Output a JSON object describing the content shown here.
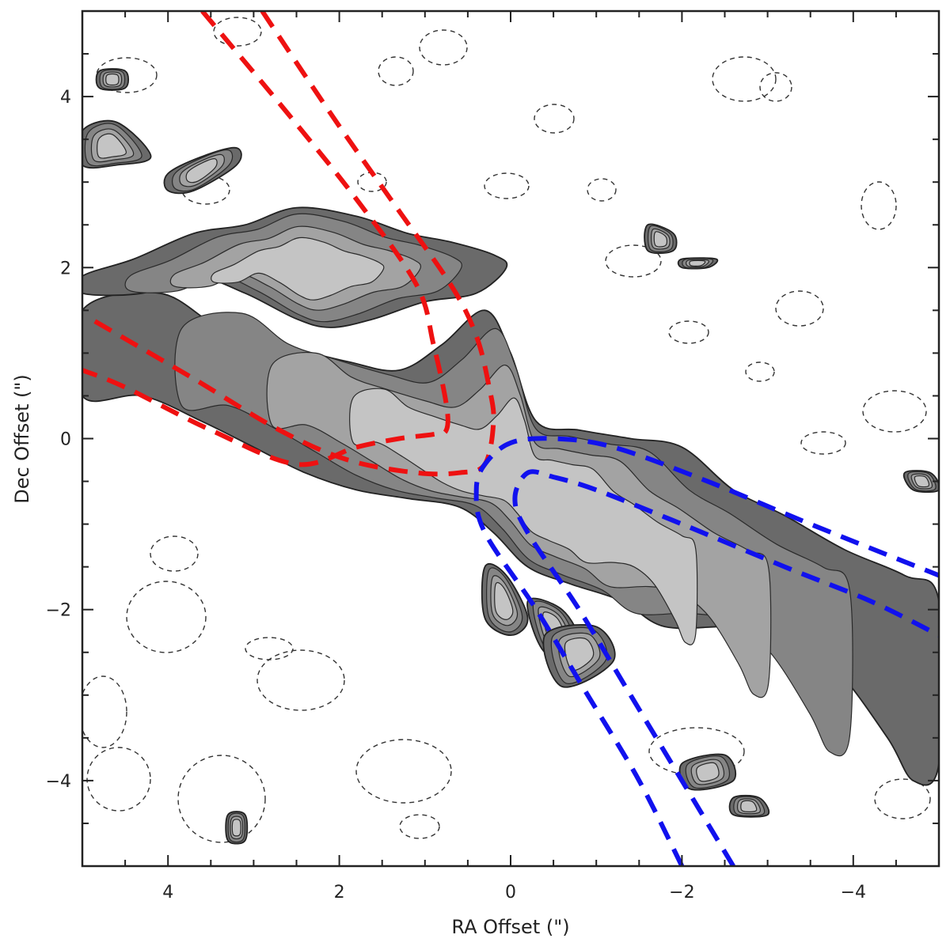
{
  "chart_data": {
    "type": "contour",
    "title": "",
    "xlabel": "RA Offset (\")",
    "ylabel": "Dec Offset (\")",
    "xlim": [
      5,
      -5
    ],
    "ylim": [
      -5,
      5
    ],
    "x_ticks": [
      {
        "value": 4,
        "label": "4"
      },
      {
        "value": 2,
        "label": "2"
      },
      {
        "value": 0,
        "label": "0"
      },
      {
        "value": -2,
        "label": "−2"
      },
      {
        "value": -4,
        "label": "−4"
      }
    ],
    "y_ticks": [
      {
        "value": 4,
        "label": "4"
      },
      {
        "value": 2,
        "label": "2"
      },
      {
        "value": 0,
        "label": "0"
      },
      {
        "value": -2,
        "label": "−2"
      },
      {
        "value": -4,
        "label": "−4"
      }
    ],
    "grid": false,
    "filled_emission_regions": [
      {
        "name": "lower-arc-ridge",
        "points": [
          [
            5.0,
            0.5
          ],
          [
            4.3,
            0.5
          ],
          [
            3.6,
            0.2
          ],
          [
            3.0,
            -0.1
          ],
          [
            2.4,
            -0.4
          ],
          [
            1.8,
            -0.6
          ],
          [
            1.2,
            -0.7
          ],
          [
            0.6,
            -0.8
          ],
          [
            0.2,
            -1.1
          ],
          [
            -0.2,
            -1.5
          ],
          [
            -0.7,
            -1.7
          ],
          [
            -1.3,
            -1.9
          ],
          [
            -1.8,
            -2.2
          ],
          [
            -2.6,
            -2.2
          ],
          [
            -3.2,
            -2.3
          ],
          [
            -3.8,
            -2.7
          ],
          [
            -4.4,
            -3.5
          ],
          [
            -4.7,
            -4.0
          ],
          [
            -5.0,
            -3.8
          ],
          [
            -5.0,
            -1.9
          ],
          [
            -4.6,
            -1.6
          ],
          [
            -3.9,
            -1.3
          ],
          [
            -3.2,
            -0.9
          ],
          [
            -2.6,
            -0.6
          ],
          [
            -2.0,
            -0.1
          ],
          [
            -1.4,
            0.0
          ],
          [
            -0.8,
            0.1
          ],
          [
            -0.3,
            0.2
          ],
          [
            0.0,
            1.0
          ],
          [
            0.3,
            1.5
          ],
          [
            0.8,
            1.1
          ],
          [
            1.3,
            0.8
          ],
          [
            1.9,
            0.9
          ],
          [
            2.7,
            1.1
          ],
          [
            3.4,
            1.3
          ],
          [
            4.1,
            1.7
          ],
          [
            5.0,
            1.5
          ]
        ]
      },
      {
        "name": "upper-arc-ridge",
        "points": [
          [
            5.0,
            1.9
          ],
          [
            4.4,
            2.1
          ],
          [
            3.7,
            2.4
          ],
          [
            3.1,
            2.5
          ],
          [
            2.5,
            2.7
          ],
          [
            1.8,
            2.6
          ],
          [
            1.2,
            2.4
          ],
          [
            0.7,
            2.3
          ],
          [
            0.2,
            2.15
          ],
          [
            0.05,
            2.0
          ],
          [
            0.4,
            1.7
          ],
          [
            1.0,
            1.6
          ],
          [
            1.6,
            1.4
          ],
          [
            2.1,
            1.3
          ],
          [
            2.5,
            1.4
          ],
          [
            3.1,
            1.7
          ],
          [
            3.7,
            1.9
          ],
          [
            4.3,
            1.7
          ],
          [
            5.0,
            1.7
          ]
        ]
      },
      {
        "name": "top-left-streak-1",
        "points": [
          [
            5.0,
            3.6
          ],
          [
            4.6,
            3.7
          ],
          [
            4.2,
            3.3
          ],
          [
            4.6,
            3.2
          ],
          [
            5.0,
            3.2
          ]
        ]
      },
      {
        "name": "top-left-streak-2",
        "points": [
          [
            4.0,
            3.1
          ],
          [
            3.6,
            3.3
          ],
          [
            3.2,
            3.4
          ],
          [
            3.2,
            3.2
          ],
          [
            3.7,
            2.9
          ],
          [
            4.0,
            2.9
          ]
        ]
      },
      {
        "name": "knot-north-1",
        "points": [
          [
            4.8,
            4.3
          ],
          [
            4.5,
            4.3
          ],
          [
            4.5,
            4.1
          ],
          [
            4.8,
            4.1
          ]
        ]
      },
      {
        "name": "knot-east",
        "points": [
          [
            -1.6,
            2.5
          ],
          [
            -1.9,
            2.4
          ],
          [
            -1.9,
            2.2
          ],
          [
            -1.6,
            2.2
          ]
        ]
      },
      {
        "name": "knot-east-2",
        "points": [
          [
            -2.0,
            2.1
          ],
          [
            -2.4,
            2.1
          ],
          [
            -2.3,
            2.0
          ],
          [
            -2.0,
            2.0
          ]
        ]
      },
      {
        "name": "jet-knot-1",
        "points": [
          [
            0.3,
            -1.5
          ],
          [
            0.05,
            -1.6
          ],
          [
            -0.2,
            -2.1
          ],
          [
            0.0,
            -2.3
          ],
          [
            0.3,
            -2.1
          ]
        ]
      },
      {
        "name": "jet-knot-2",
        "points": [
          [
            -0.2,
            -1.9
          ],
          [
            -0.6,
            -2.0
          ],
          [
            -0.8,
            -2.4
          ],
          [
            -0.4,
            -2.5
          ]
        ]
      },
      {
        "name": "jet-knot-3",
        "points": [
          [
            -0.4,
            -2.3
          ],
          [
            -1.0,
            -2.2
          ],
          [
            -1.2,
            -2.6
          ],
          [
            -0.6,
            -2.9
          ]
        ]
      },
      {
        "name": "knot-south-1",
        "points": [
          [
            -2.0,
            -3.8
          ],
          [
            -2.5,
            -3.7
          ],
          [
            -2.6,
            -4.0
          ],
          [
            -2.1,
            -4.1
          ]
        ]
      },
      {
        "name": "knot-south-2",
        "points": [
          [
            -2.6,
            -4.2
          ],
          [
            -2.9,
            -4.2
          ],
          [
            -3.0,
            -4.4
          ],
          [
            -2.6,
            -4.4
          ]
        ]
      },
      {
        "name": "knot-sw",
        "points": [
          [
            3.3,
            -4.4
          ],
          [
            3.1,
            -4.4
          ],
          [
            3.1,
            -4.7
          ],
          [
            3.3,
            -4.7
          ]
        ]
      },
      {
        "name": "knot-far-east",
        "points": [
          [
            -4.6,
            -0.4
          ],
          [
            -4.9,
            -0.4
          ],
          [
            -5.0,
            -0.6
          ],
          [
            -4.7,
            -0.6
          ]
        ]
      }
    ],
    "dashed_outflow_cones": [
      {
        "name": "red-lobe",
        "color": "#ee1111",
        "lines": [
          [
            [
              3.6,
              5.0
            ],
            [
              2.6,
              3.8
            ],
            [
              1.8,
              2.8
            ],
            [
              1.1,
              1.8
            ],
            [
              0.9,
              1.1
            ],
            [
              0.75,
              0.4
            ],
            [
              0.75,
              0.1
            ],
            [
              0.9,
              0.05
            ],
            [
              1.3,
              0.0
            ],
            [
              1.8,
              -0.1
            ],
            [
              2.5,
              -0.3
            ],
            [
              3.5,
              0.1
            ],
            [
              4.5,
              0.6
            ],
            [
              5.0,
              0.8
            ]
          ],
          [
            [
              2.9,
              5.0
            ],
            [
              2.1,
              3.8
            ],
            [
              1.4,
              2.8
            ],
            [
              0.7,
              1.8
            ],
            [
              0.4,
              1.2
            ],
            [
              0.25,
              0.6
            ],
            [
              0.2,
              0.2
            ],
            [
              0.3,
              -0.3
            ],
            [
              0.6,
              -0.4
            ],
            [
              1.1,
              -0.4
            ],
            [
              1.9,
              -0.25
            ],
            [
              2.7,
              0.1
            ],
            [
              3.7,
              0.7
            ],
            [
              4.9,
              1.4
            ]
          ]
        ]
      },
      {
        "name": "blue-lobe",
        "color": "#1111ee",
        "lines": [
          [
            [
              -2.0,
              -5.0
            ],
            [
              -1.5,
              -4.0
            ],
            [
              -0.9,
              -3.0
            ],
            [
              -0.3,
              -2.0
            ],
            [
              0.3,
              -1.1
            ],
            [
              0.4,
              -0.6
            ],
            [
              0.3,
              -0.3
            ],
            [
              0.0,
              -0.05
            ],
            [
              -0.5,
              0.0
            ],
            [
              -1.2,
              -0.1
            ],
            [
              -2.3,
              -0.5
            ],
            [
              -3.5,
              -1.0
            ],
            [
              -5.0,
              -1.6
            ]
          ],
          [
            [
              -2.6,
              -5.0
            ],
            [
              -2.0,
              -4.0
            ],
            [
              -1.4,
              -3.0
            ],
            [
              -0.8,
              -2.0
            ],
            [
              -0.2,
              -1.1
            ],
            [
              -0.05,
              -0.7
            ],
            [
              -0.2,
              -0.4
            ],
            [
              -0.5,
              -0.45
            ],
            [
              -1.0,
              -0.6
            ],
            [
              -2.0,
              -1.0
            ],
            [
              -3.2,
              -1.5
            ],
            [
              -4.2,
              -1.9
            ],
            [
              -5.0,
              -2.3
            ]
          ]
        ]
      }
    ]
  }
}
